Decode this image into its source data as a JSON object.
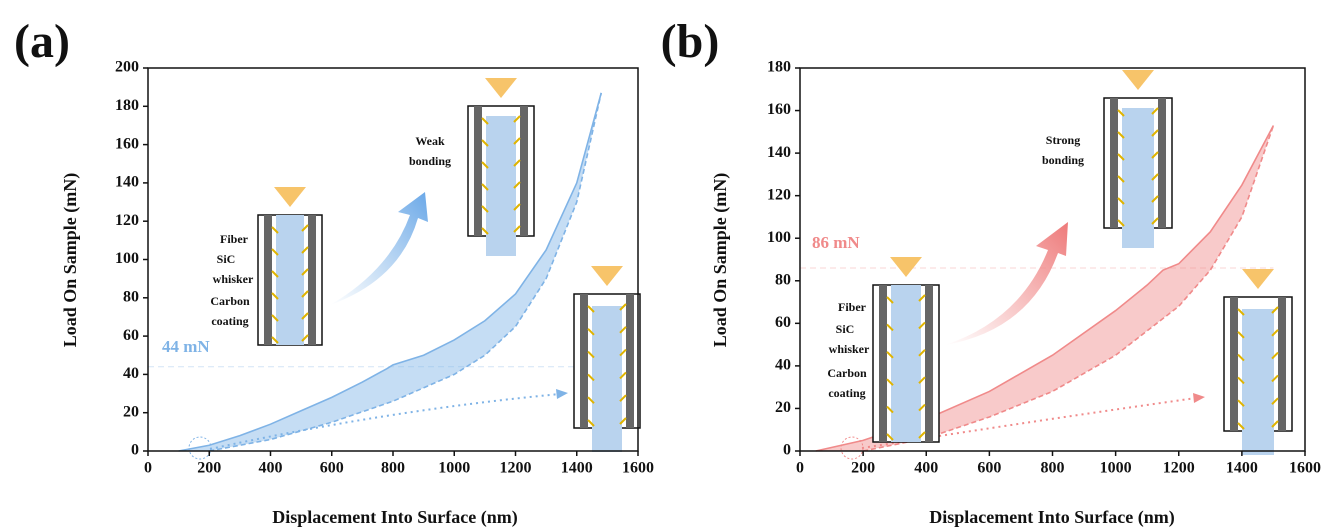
{
  "chart_data": [
    {
      "type": "line",
      "panel_label": "(a)",
      "x_label": "Displacement Into Surface (nm)",
      "y_label": "Load On Sample (mN)",
      "xlim": [
        0,
        1600
      ],
      "xticks": [
        0,
        200,
        400,
        600,
        800,
        1000,
        1200,
        1400,
        1600
      ],
      "ylim": [
        0,
        200
      ],
      "yticks": [
        0,
        20,
        40,
        60,
        80,
        100,
        120,
        140,
        160,
        180,
        200
      ],
      "series": [
        {
          "color": "#7fb3e6",
          "x": [
            100,
            200,
            300,
            400,
            500,
            600,
            700,
            780,
            800,
            900,
            1000,
            1100,
            1200,
            1300,
            1400,
            1480
          ],
          "values": [
            0,
            3,
            8,
            14,
            21,
            28,
            36,
            43,
            45,
            50,
            58,
            68,
            82,
            105,
            140,
            187
          ]
        },
        {
          "color": "#7fb3e6",
          "dashed": true,
          "x": [
            200,
            400,
            600,
            800,
            1000,
            1100,
            1200,
            1300,
            1400,
            1480
          ],
          "values": [
            0,
            6,
            15,
            26,
            40,
            50,
            65,
            90,
            130,
            187
          ]
        }
      ],
      "ref_line": {
        "value": 44,
        "label": "44 mN"
      },
      "annotations": [
        "Fiber",
        "SiC",
        "whisker",
        "Carbon",
        "coating",
        "Weak",
        "bonding"
      ]
    },
    {
      "type": "line",
      "panel_label": "(b)",
      "x_label": "Displacement Into Surface (nm)",
      "y_label": "Load On Sample (mN)",
      "xlim": [
        0,
        1600
      ],
      "xticks": [
        0,
        200,
        400,
        600,
        800,
        1000,
        1200,
        1400,
        1600
      ],
      "ylim": [
        0,
        180
      ],
      "yticks": [
        0,
        20,
        40,
        60,
        80,
        100,
        120,
        140,
        160,
        180
      ],
      "series": [
        {
          "color": "#f08a8a",
          "x": [
            50,
            200,
            400,
            600,
            800,
            1000,
            1100,
            1150,
            1200,
            1300,
            1400,
            1500
          ],
          "values": [
            0,
            5,
            15,
            28,
            45,
            66,
            78,
            85,
            88,
            103,
            125,
            153
          ]
        },
        {
          "color": "#f08a8a",
          "dashed": true,
          "x": [
            200,
            400,
            600,
            800,
            1000,
            1200,
            1300,
            1400,
            1500
          ],
          "values": [
            0,
            6,
            16,
            28,
            45,
            68,
            85,
            110,
            153
          ]
        }
      ],
      "ref_line": {
        "value": 86,
        "label": "86 mN"
      },
      "annotations": [
        "Fiber",
        "SiC",
        "whisker",
        "Carbon",
        "coating",
        "Strong",
        "bonding"
      ]
    }
  ]
}
